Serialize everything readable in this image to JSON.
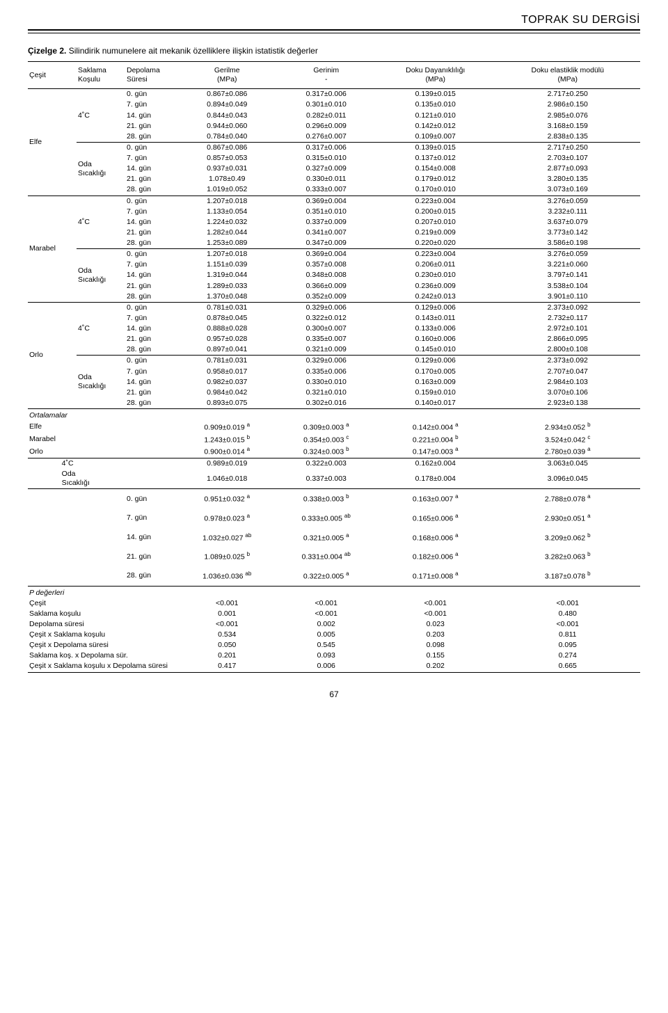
{
  "journal": "TOPRAK SU DERGİSİ",
  "caption_bold": "Çizelge 2.",
  "caption_rest": " Silindirik numunelere ait mekanik özelliklere ilişkin istatistik değerler",
  "cols": {
    "c0": "Çeşit",
    "c1": "Saklama\nKoşulu",
    "c2": "Depolama\nSüresi",
    "c3": "Gerilme\n(MPa)",
    "c4": "Gerinim\n-",
    "c5": "Doku Dayanıklılığı\n(MPa)",
    "c6": "Doku elastiklik modülü\n(MPa)"
  },
  "varieties": [
    "Elfe",
    "Marabel",
    "Orlo"
  ],
  "conds": [
    "4˚C",
    "Oda\nSıcaklığı"
  ],
  "days": [
    "0. gün",
    "7. gün",
    "14. gün",
    "21. gün",
    "28. gün"
  ],
  "data": {
    "Elfe": {
      "4C": [
        [
          "0.867±0.086",
          "0.317±0.006",
          "0.139±0.015",
          "2.717±0.250"
        ],
        [
          "0.894±0.049",
          "0.301±0.010",
          "0.135±0.010",
          "2.986±0.150"
        ],
        [
          "0.844±0.043",
          "0.282±0.011",
          "0.121±0.010",
          "2.985±0.076"
        ],
        [
          "0.944±0.060",
          "0.296±0.009",
          "0.142±0.012",
          "3.168±0.159"
        ],
        [
          "0.784±0.040",
          "0.276±0.007",
          "0.109±0.007",
          "2.838±0.135"
        ]
      ],
      "Oda": [
        [
          "0.867±0.086",
          "0.317±0.006",
          "0.139±0.015",
          "2.717±0.250"
        ],
        [
          "0.857±0.053",
          "0.315±0.010",
          "0.137±0.012",
          "2.703±0.107"
        ],
        [
          "0.937±0.031",
          "0.327±0.009",
          "0.154±0.008",
          "2.877±0.093"
        ],
        [
          "1.078±0.49",
          "0.330±0.011",
          "0.179±0.012",
          "3.280±0.135"
        ],
        [
          "1.019±0.052",
          "0.333±0.007",
          "0.170±0.010",
          "3.073±0.169"
        ]
      ]
    },
    "Marabel": {
      "4C": [
        [
          "1.207±0.018",
          "0.369±0.004",
          "0.223±0.004",
          "3.276±0.059"
        ],
        [
          "1.133±0.054",
          "0.351±0.010",
          "0.200±0.015",
          "3.232±0.111"
        ],
        [
          "1.224±0.032",
          "0.337±0.009",
          "0.207±0.010",
          "3.637±0.079"
        ],
        [
          "1.282±0.044",
          "0.341±0.007",
          "0.219±0.009",
          "3.773±0.142"
        ],
        [
          "1.253±0.089",
          "0.347±0.009",
          "0.220±0.020",
          "3.586±0.198"
        ]
      ],
      "Oda": [
        [
          "1.207±0.018",
          "0.369±0.004",
          "0.223±0.004",
          "3.276±0.059"
        ],
        [
          "1.151±0.039",
          "0.357±0.008",
          "0.206±0.011",
          "3.221±0.060"
        ],
        [
          "1.319±0.044",
          "0.348±0.008",
          "0.230±0.010",
          "3.797±0.141"
        ],
        [
          "1.289±0.033",
          "0.366±0.009",
          "0.236±0.009",
          "3.538±0.104"
        ],
        [
          "1.370±0.048",
          "0.352±0.009",
          "0.242±0.013",
          "3.901±0.110"
        ]
      ]
    },
    "Orlo": {
      "4C": [
        [
          "0.781±0.031",
          "0.329±0.006",
          "0.129±0.006",
          "2.373±0.092"
        ],
        [
          "0.878±0.045",
          "0.322±0.012",
          "0.143±0.011",
          "2.732±0.117"
        ],
        [
          "0.888±0.028",
          "0.300±0.007",
          "0.133±0.006",
          "2.972±0.101"
        ],
        [
          "0.957±0.028",
          "0.335±0.007",
          "0.160±0.006",
          "2.866±0.095"
        ],
        [
          "0.897±0.041",
          "0.321±0.009",
          "0.145±0.010",
          "2.800±0.108"
        ]
      ],
      "Oda": [
        [
          "0.781±0.031",
          "0.329±0.006",
          "0.129±0.006",
          "2.373±0.092"
        ],
        [
          "0.958±0.017",
          "0.335±0.006",
          "0.170±0.005",
          "2.707±0.047"
        ],
        [
          "0.982±0.037",
          "0.330±0.010",
          "0.163±0.009",
          "2.984±0.103"
        ],
        [
          "0.984±0.042",
          "0.321±0.010",
          "0.159±0.010",
          "3.070±0.106"
        ],
        [
          "0.893±0.075",
          "0.302±0.016",
          "0.140±0.017",
          "2.923±0.138"
        ]
      ]
    }
  },
  "ort_label": "Ortalamalar",
  "ort_rows": [
    {
      "l": "Elfe",
      "v": [
        "0.909±0.019",
        "a",
        "0.309±0.003",
        "a",
        "0.142±0.004",
        "a",
        "2.934±0.052",
        "b"
      ]
    },
    {
      "l": "Marabel",
      "v": [
        "1.243±0.015",
        "b",
        "0.354±0.003",
        "c",
        "0.221±0.004",
        "b",
        "3.524±0.042",
        "c"
      ]
    },
    {
      "l": "Orlo",
      "v": [
        "0.900±0.014",
        "a",
        "0.324±0.003",
        "b",
        "0.147±0.003",
        "a",
        "2.780±0.039",
        "a"
      ]
    }
  ],
  "cond_means": [
    {
      "l": "4˚C",
      "v": [
        "0.989±0.019",
        "0.322±0.003",
        "0.162±0.004",
        "3.063±0.045"
      ]
    },
    {
      "l": "Oda\nSıcaklığı",
      "v": [
        "1.046±0.018",
        "0.337±0.003",
        "0.178±0.004",
        "3.096±0.045"
      ]
    }
  ],
  "day_means": [
    {
      "l": "0. gün",
      "v": [
        "0.951±0.032",
        "a",
        "0.338±0.003",
        "b",
        "0.163±0.007",
        "a",
        "2.788±0.078",
        "a"
      ]
    },
    {
      "l": "7. gün",
      "v": [
        "0.978±0.023",
        "a",
        "0.333±0.005",
        "ab",
        "0.165±0.006",
        "a",
        "2.930±0.051",
        "a"
      ]
    },
    {
      "l": "14. gün",
      "v": [
        "1.032±0.027",
        "ab",
        "0.321±0.005",
        "a",
        "0.168±0.006",
        "a",
        "3.209±0.062",
        "b"
      ]
    },
    {
      "l": "21. gün",
      "v": [
        "1.089±0.025",
        "b",
        "0.331±0.004",
        "ab",
        "0.182±0.006",
        "a",
        "3.282±0.063",
        "b"
      ]
    },
    {
      "l": "28. gün",
      "v": [
        "1.036±0.036",
        "ab",
        "0.322±0.005",
        "a",
        "0.171±0.008",
        "a",
        "3.187±0.078",
        "b"
      ]
    }
  ],
  "p_label": "P değerleri",
  "p_rows": [
    {
      "l": "Çeşit",
      "v": [
        "<0.001",
        "<0.001",
        "<0.001",
        "<0.001"
      ]
    },
    {
      "l": "Saklama koşulu",
      "v": [
        "0.001",
        "<0.001",
        "<0.001",
        "0.480"
      ]
    },
    {
      "l": "Depolama süresi",
      "v": [
        "<0.001",
        "0.002",
        "0.023",
        "<0.001"
      ]
    },
    {
      "l": "Çeşit x Saklama koşulu",
      "v": [
        "0.534",
        "0.005",
        "0.203",
        "0.811"
      ]
    },
    {
      "l": "Çeşit x Depolama süresi",
      "v": [
        "0.050",
        "0.545",
        "0.098",
        "0.095"
      ]
    },
    {
      "l": "Saklama koş. x Depolama sür.",
      "v": [
        "0.201",
        "0.093",
        "0.155",
        "0.274"
      ]
    },
    {
      "l": "Çeşit x Saklama koşulu  x Depolama süresi",
      "v": [
        "0.417",
        "0.006",
        "0.202",
        "0.665"
      ]
    }
  ],
  "page_num": "67"
}
